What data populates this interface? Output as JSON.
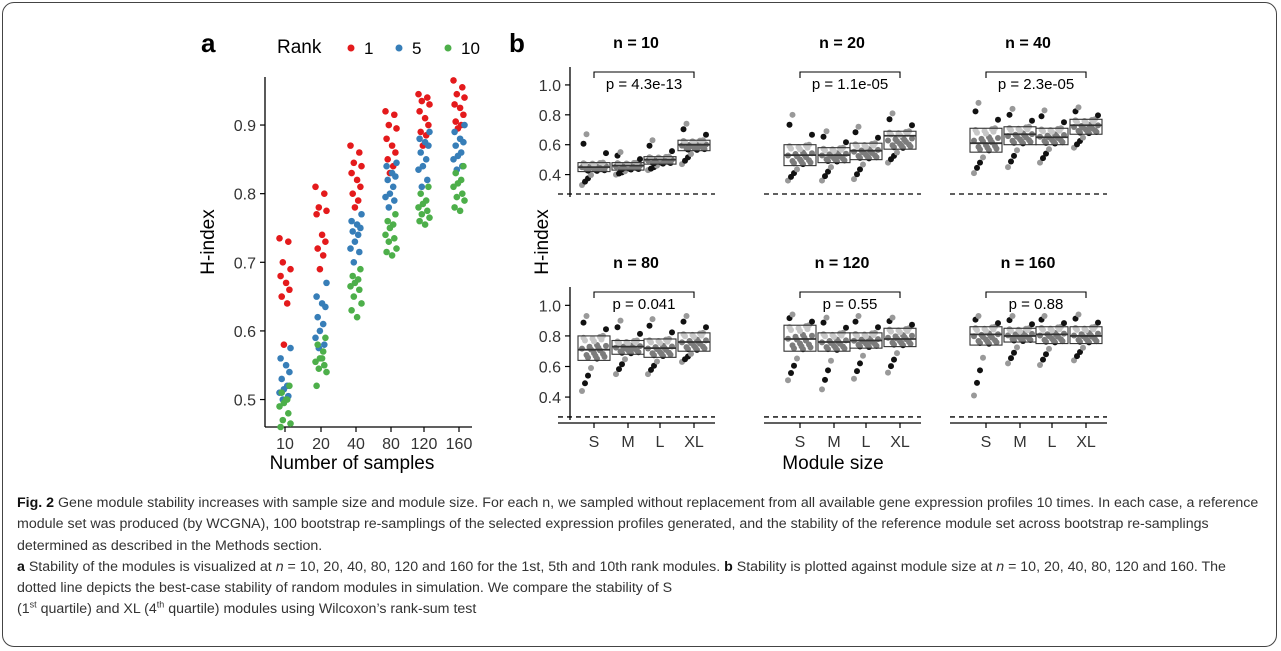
{
  "panel_a": {
    "letter": "a",
    "legend_title": "Rank",
    "legend_items": [
      {
        "label": "1",
        "color": "#e41a1c"
      },
      {
        "label": "5",
        "color": "#377eb8"
      },
      {
        "label": "10",
        "color": "#4daf4a"
      }
    ],
    "ylabel": "H-index",
    "xlabel": "Number of samples",
    "x_ticks": [
      "10",
      "20",
      "40",
      "80",
      "120",
      "160"
    ],
    "y_ticks": [
      "0.5",
      "0.6",
      "0.7",
      "0.8",
      "0.9"
    ]
  },
  "panel_b": {
    "letter": "b",
    "ylabel": "H-index",
    "xlabel": "Module size",
    "x_ticks": [
      "S",
      "M",
      "L",
      "XL"
    ],
    "y_ticks": [
      "0.4",
      "0.6",
      "0.8",
      "1.0"
    ]
  },
  "chart_data": [
    {
      "type": "scatter",
      "panel": "a",
      "ylim": [
        0.46,
        0.97
      ],
      "categories": [
        "10",
        "20",
        "40",
        "80",
        "120",
        "160"
      ],
      "series": [
        {
          "name": "1",
          "color": "#e41a1c",
          "values": [
            [
              0.735,
              0.73,
              0.7,
              0.69,
              0.68,
              0.67,
              0.66,
              0.65,
              0.64,
              0.58
            ],
            [
              0.81,
              0.8,
              0.78,
              0.775,
              0.77,
              0.74,
              0.73,
              0.72,
              0.71,
              0.69
            ],
            [
              0.87,
              0.86,
              0.845,
              0.84,
              0.83,
              0.82,
              0.81,
              0.8,
              0.79,
              0.78
            ],
            [
              0.92,
              0.915,
              0.9,
              0.895,
              0.88,
              0.87,
              0.86,
              0.85,
              0.84,
              0.83
            ],
            [
              0.945,
              0.94,
              0.935,
              0.93,
              0.92,
              0.91,
              0.9,
              0.89,
              0.885,
              0.87
            ],
            [
              0.965,
              0.955,
              0.945,
              0.94,
              0.93,
              0.925,
              0.915,
              0.905,
              0.9,
              0.895
            ]
          ]
        },
        {
          "name": "5",
          "color": "#377eb8",
          "values": [
            [
              0.575,
              0.56,
              0.55,
              0.54,
              0.53,
              0.52,
              0.515,
              0.51,
              0.505,
              0.5
            ],
            [
              0.67,
              0.65,
              0.64,
              0.635,
              0.62,
              0.61,
              0.6,
              0.59,
              0.58,
              0.575
            ],
            [
              0.77,
              0.76,
              0.755,
              0.75,
              0.745,
              0.74,
              0.73,
              0.72,
              0.715,
              0.7
            ],
            [
              0.845,
              0.84,
              0.83,
              0.825,
              0.82,
              0.81,
              0.8,
              0.795,
              0.79,
              0.78
            ],
            [
              0.89,
              0.88,
              0.875,
              0.87,
              0.86,
              0.85,
              0.84,
              0.835,
              0.82,
              0.81
            ],
            [
              0.9,
              0.89,
              0.88,
              0.875,
              0.87,
              0.86,
              0.855,
              0.85,
              0.84,
              0.835
            ]
          ]
        },
        {
          "name": "10",
          "color": "#4daf4a",
          "values": [
            [
              0.52,
              0.51,
              0.5,
              0.495,
              0.49,
              0.48,
              0.47,
              0.465,
              0.46,
              0.5
            ],
            [
              0.59,
              0.58,
              0.57,
              0.56,
              0.555,
              0.55,
              0.545,
              0.54,
              0.52,
              0.56
            ],
            [
              0.69,
              0.68,
              0.675,
              0.67,
              0.665,
              0.66,
              0.65,
              0.64,
              0.63,
              0.62
            ],
            [
              0.77,
              0.76,
              0.755,
              0.75,
              0.74,
              0.735,
              0.73,
              0.72,
              0.715,
              0.71
            ],
            [
              0.81,
              0.8,
              0.79,
              0.785,
              0.78,
              0.775,
              0.77,
              0.765,
              0.76,
              0.755
            ],
            [
              0.84,
              0.83,
              0.82,
              0.815,
              0.81,
              0.8,
              0.795,
              0.79,
              0.78,
              0.775
            ]
          ]
        }
      ],
      "xlabel": "Number of samples",
      "ylabel": "H-index"
    },
    {
      "type": "box",
      "panel": "b",
      "ylim": [
        0.25,
        1.12
      ],
      "categories": [
        "S",
        "M",
        "L",
        "XL"
      ],
      "baseline": 0.27,
      "facets": [
        {
          "title": "n = 10",
          "p": "p = 4.3e-13",
          "boxes": [
            {
              "q1": 0.42,
              "med": 0.45,
              "q3": 0.48,
              "min": 0.33,
              "max": 0.67
            },
            {
              "q1": 0.43,
              "med": 0.46,
              "q3": 0.48,
              "min": 0.4,
              "max": 0.55
            },
            {
              "q1": 0.47,
              "med": 0.5,
              "q3": 0.52,
              "min": 0.43,
              "max": 0.63
            },
            {
              "q1": 0.56,
              "med": 0.6,
              "q3": 0.63,
              "min": 0.47,
              "max": 0.74
            }
          ]
        },
        {
          "title": "n = 20",
          "p": "p = 1.1e-05",
          "boxes": [
            {
              "q1": 0.46,
              "med": 0.53,
              "q3": 0.6,
              "min": 0.36,
              "max": 0.8
            },
            {
              "q1": 0.48,
              "med": 0.53,
              "q3": 0.58,
              "min": 0.36,
              "max": 0.69
            },
            {
              "q1": 0.5,
              "med": 0.56,
              "q3": 0.61,
              "min": 0.37,
              "max": 0.72
            },
            {
              "q1": 0.57,
              "med": 0.66,
              "q3": 0.69,
              "min": 0.48,
              "max": 0.81
            }
          ]
        },
        {
          "title": "n = 40",
          "p": "p = 2.3e-05",
          "boxes": [
            {
              "q1": 0.55,
              "med": 0.61,
              "q3": 0.71,
              "min": 0.41,
              "max": 0.88
            },
            {
              "q1": 0.6,
              "med": 0.67,
              "q3": 0.72,
              "min": 0.45,
              "max": 0.84
            },
            {
              "q1": 0.6,
              "med": 0.65,
              "q3": 0.71,
              "min": 0.48,
              "max": 0.83
            },
            {
              "q1": 0.67,
              "med": 0.73,
              "q3": 0.77,
              "min": 0.58,
              "max": 0.85
            }
          ]
        },
        {
          "title": "n = 80",
          "p": "p = 0.041",
          "boxes": [
            {
              "q1": 0.64,
              "med": 0.71,
              "q3": 0.8,
              "min": 0.44,
              "max": 0.93
            },
            {
              "q1": 0.68,
              "med": 0.73,
              "q3": 0.77,
              "min": 0.55,
              "max": 0.9
            },
            {
              "q1": 0.66,
              "med": 0.72,
              "q3": 0.78,
              "min": 0.55,
              "max": 0.91
            },
            {
              "q1": 0.7,
              "med": 0.76,
              "q3": 0.82,
              "min": 0.63,
              "max": 0.93
            }
          ]
        },
        {
          "title": "n = 120",
          "p": "p = 0.55",
          "boxes": [
            {
              "q1": 0.7,
              "med": 0.78,
              "q3": 0.87,
              "min": 0.51,
              "max": 0.94
            },
            {
              "q1": 0.7,
              "med": 0.76,
              "q3": 0.82,
              "min": 0.45,
              "max": 0.92
            },
            {
              "q1": 0.72,
              "med": 0.77,
              "q3": 0.82,
              "min": 0.52,
              "max": 0.93
            },
            {
              "q1": 0.73,
              "med": 0.78,
              "q3": 0.85,
              "min": 0.56,
              "max": 0.92
            }
          ]
        },
        {
          "title": "n = 160",
          "p": "p = 0.88",
          "boxes": [
            {
              "q1": 0.74,
              "med": 0.81,
              "q3": 0.86,
              "min": 0.41,
              "max": 0.93
            },
            {
              "q1": 0.76,
              "med": 0.8,
              "q3": 0.85,
              "min": 0.62,
              "max": 0.93
            },
            {
              "q1": 0.75,
              "med": 0.81,
              "q3": 0.86,
              "min": 0.61,
              "max": 0.93
            },
            {
              "q1": 0.75,
              "med": 0.8,
              "q3": 0.86,
              "min": 0.64,
              "max": 0.94
            }
          ]
        }
      ],
      "xlabel": "Module size",
      "ylabel": "H-index"
    }
  ],
  "caption": {
    "fig_label": "Fig. 2",
    "title": "Gene module stability increases with sample size and module size.",
    "body1": "For each n, we sampled without replacement from all available gene expression profiles 10 times. In each case, a reference module set was produced (by WCGNA), 100 bootstrap re-samplings of the selected expression profiles generated, and the stability of the reference module set across bootstrap re-samplings determined as described in the Methods section.",
    "a_letter": "a",
    "a_text_pre": "Stability of the modules is visualized at",
    "a_n": "n",
    "a_text_post": "= 10, 20, 40, 80, 120 and 160 for the 1st, 5th and 10th rank modules.",
    "b_letter": "b",
    "b_text_pre": "Stability is plotted against module size at",
    "b_n": "n",
    "b_text_post": "= 10, 20, 40, 80, 120 and 160. The dotted line depicts the best-case stability of random modules in simulation. We compare the stability of S",
    "q1_pre": "(1",
    "q1_sup": "st",
    "q1_post": "quartile) and XL (4",
    "q4_sup": "th",
    "q4_post": "quartile) modules using Wilcoxon’s rank-sum test"
  }
}
